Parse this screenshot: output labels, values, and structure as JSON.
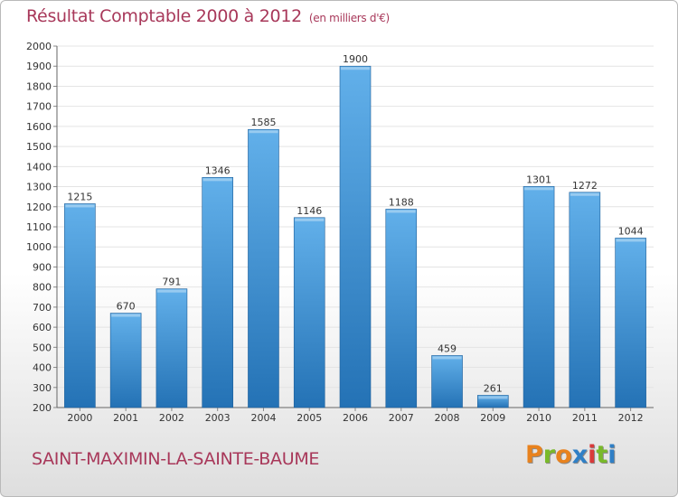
{
  "header": {
    "title": "Résultat Comptable 2000 à 2012",
    "unit": "(en milliers d'€)"
  },
  "footer": {
    "city": "SAINT-MAXIMIN-LA-SAINTE-BAUME",
    "brand": "Proxiti"
  },
  "colors": {
    "title": "#a8385a",
    "bar_top": "#62b0ea",
    "bar_bottom": "#2472b5",
    "logo_letters": [
      "#e8821e",
      "#79b92a",
      "#e8821e",
      "#2f7fc6",
      "#d93a3a",
      "#79b92a",
      "#2f7fc6"
    ]
  },
  "chart_data": {
    "type": "bar",
    "title": "Résultat Comptable 2000 à 2012",
    "subtitle": "(en milliers d'€)",
    "xlabel": "",
    "ylabel": "",
    "categories": [
      "2000",
      "2001",
      "2002",
      "2003",
      "2004",
      "2005",
      "2006",
      "2007",
      "2008",
      "2009",
      "2010",
      "2011",
      "2012"
    ],
    "values": [
      1215,
      670,
      791,
      1346,
      1585,
      1146,
      1900,
      1188,
      459,
      261,
      1301,
      1272,
      1044
    ],
    "ylim": [
      200,
      2000
    ],
    "yticks": [
      200,
      300,
      400,
      500,
      600,
      700,
      800,
      900,
      1000,
      1100,
      1200,
      1300,
      1400,
      1500,
      1600,
      1700,
      1800,
      1900,
      2000
    ],
    "grid": true,
    "legend": "none"
  }
}
